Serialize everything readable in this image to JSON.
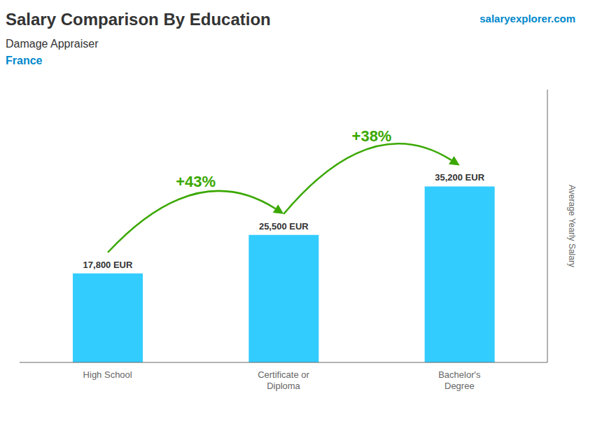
{
  "chart_data": {
    "type": "bar",
    "title": "Salary Comparison By Education",
    "subtitle": "Damage Appraiser",
    "ylabel": "Average Yearly Salary",
    "categories": [
      "High School",
      "Certificate or\nDiploma",
      "Bachelor's\nDegree"
    ],
    "values": [
      17800,
      25500,
      35200
    ],
    "value_labels": [
      "17,800 EUR",
      "25,500 EUR",
      "35,200 EUR"
    ],
    "data_labels": true,
    "color": "#33ccff",
    "ylim": [
      0,
      54560
    ],
    "tick_labels": "x",
    "grid": false,
    "annotations": [
      "France",
      "salaryexplorer.com",
      "+43%",
      "+38%"
    ]
  }
}
